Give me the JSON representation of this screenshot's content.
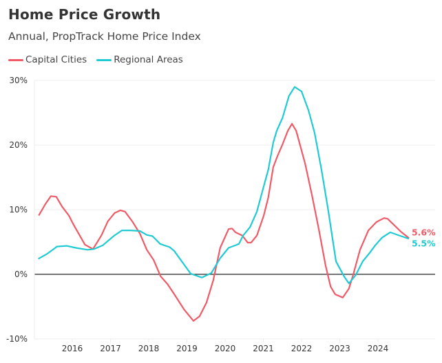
{
  "colors": {
    "capital": "#ef5a66",
    "regional": "#1fcad2",
    "grid": "#ececec",
    "zero": "#222222"
  },
  "chart_data": {
    "type": "line",
    "title": "Home Price Growth",
    "subtitle": "Annual, PropTrack Home Price Index",
    "xlabel": "",
    "ylabel": "",
    "xlim": [
      2015.0,
      2025.4
    ],
    "ylim": [
      -10,
      30
    ],
    "yticks": [
      -10,
      0,
      10,
      20,
      30
    ],
    "ytick_labels": [
      "-10%",
      "0%",
      "10%",
      "20%",
      "30%"
    ],
    "xticks": [
      2016,
      2017,
      2018,
      2019,
      2020,
      2021,
      2022,
      2023,
      2024
    ],
    "xtick_labels": [
      "2016",
      "2017",
      "2018",
      "2019",
      "2020",
      "2021",
      "2022",
      "2023",
      "2024"
    ],
    "grid": true,
    "legend": "top-left",
    "series": [
      {
        "name": "Capital Cities",
        "color_key": "capital",
        "end_label": "5.6%",
        "x": [
          2015.12,
          2015.3,
          2015.44,
          2015.58,
          2015.73,
          2015.91,
          2016.03,
          2016.33,
          2016.54,
          2016.76,
          2016.93,
          2017.11,
          2017.26,
          2017.38,
          2017.58,
          2017.77,
          2017.95,
          2018.13,
          2018.31,
          2018.49,
          2018.67,
          2018.92,
          2019.17,
          2019.33,
          2019.51,
          2019.69,
          2019.87,
          2020.09,
          2020.18,
          2020.27,
          2020.45,
          2020.59,
          2020.68,
          2020.83,
          2021.01,
          2021.13,
          2021.26,
          2021.37,
          2021.5,
          2021.64,
          2021.75,
          2021.86,
          2022.09,
          2022.27,
          2022.45,
          2022.63,
          2022.76,
          2022.88,
          2023.08,
          2023.24,
          2023.35,
          2023.53,
          2023.75,
          2023.96,
          2024.16,
          2024.25,
          2024.6,
          2024.81
        ],
        "y": [
          9.1,
          10.9,
          12.1,
          12.0,
          10.5,
          9.1,
          7.7,
          4.6,
          3.9,
          6.0,
          8.2,
          9.5,
          9.9,
          9.7,
          8.1,
          6.3,
          3.8,
          2.2,
          -0.3,
          -1.5,
          -3.1,
          -5.4,
          -7.2,
          -6.5,
          -4.4,
          -0.9,
          4.1,
          7.0,
          7.1,
          6.5,
          6.0,
          4.9,
          4.9,
          6.0,
          9.1,
          11.9,
          16.6,
          18.3,
          20.1,
          22.2,
          23.3,
          22.2,
          17.2,
          12.3,
          7.0,
          1.3,
          -1.9,
          -3.1,
          -3.6,
          -2.2,
          -0.1,
          3.8,
          6.8,
          8.1,
          8.7,
          8.6,
          6.6,
          5.6
        ]
      },
      {
        "name": "Regional Areas",
        "color_key": "regional",
        "end_label": "5.5%",
        "x": [
          2015.11,
          2015.35,
          2015.6,
          2015.85,
          2016.09,
          2016.4,
          2016.57,
          2016.8,
          2017.1,
          2017.3,
          2017.53,
          2017.77,
          2017.95,
          2018.1,
          2018.3,
          2018.55,
          2018.67,
          2018.9,
          2019.1,
          2019.39,
          2019.64,
          2019.87,
          2020.09,
          2020.23,
          2020.36,
          2020.47,
          2020.65,
          2020.83,
          2021.0,
          2021.13,
          2021.26,
          2021.35,
          2021.5,
          2021.67,
          2021.82,
          2022.0,
          2022.18,
          2022.34,
          2022.52,
          2022.7,
          2022.9,
          2023.12,
          2023.24,
          2023.42,
          2023.6,
          2023.78,
          2023.93,
          2024.11,
          2024.32,
          2024.56,
          2024.81
        ],
        "y": [
          2.4,
          3.2,
          4.3,
          4.4,
          4.1,
          3.8,
          3.9,
          4.5,
          6.0,
          6.8,
          6.8,
          6.7,
          6.1,
          5.9,
          4.7,
          4.2,
          3.6,
          1.7,
          0.1,
          -0.5,
          0.2,
          2.5,
          4.1,
          4.4,
          4.7,
          6.0,
          7.3,
          9.7,
          13.4,
          16.2,
          20.4,
          22.2,
          24.2,
          27.6,
          29.0,
          28.3,
          25.4,
          21.9,
          16.2,
          9.8,
          2.0,
          -0.4,
          -1.4,
          -0.1,
          2.0,
          3.3,
          4.5,
          5.7,
          6.5,
          6.0,
          5.5
        ]
      }
    ]
  }
}
